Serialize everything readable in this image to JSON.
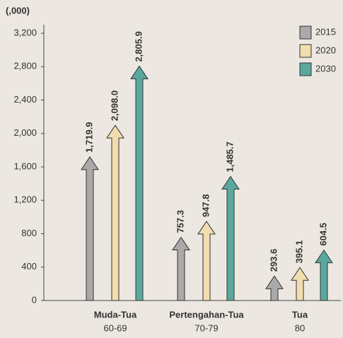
{
  "chart_data": {
    "type": "arrow-bar",
    "ylabel": "(,000)",
    "categories": [
      "Muda-Tua",
      "Pertengahan-Tua",
      "Tua"
    ],
    "category_ranges": [
      "60-69",
      "70-79",
      "80"
    ],
    "series": [
      {
        "name": "2015",
        "color": "#a9a9a9",
        "values": [
          1719.9,
          757.3,
          293.6
        ],
        "value_labels": [
          "1,719.9",
          "757.3",
          "293.6"
        ]
      },
      {
        "name": "2020",
        "color": "#f1ddad",
        "values": [
          2098.0,
          947.8,
          395.1
        ],
        "value_labels": [
          "2,098.0",
          "947.8",
          "395.1"
        ]
      },
      {
        "name": "2030",
        "color": "#5aa89d",
        "values": [
          2805.9,
          1485.7,
          604.5
        ],
        "value_labels": [
          "2,805.9",
          "1,485.7",
          "604.5"
        ]
      }
    ],
    "ylim": [
      0,
      3200
    ],
    "yticks": [
      0,
      400,
      800,
      {
        "value": 1200,
        "label": "1,200"
      },
      {
        "value": 1600,
        "label": "1,600"
      },
      {
        "value": 2000,
        "label": "2,000"
      },
      {
        "value": 2400,
        "label": "2,400"
      },
      {
        "value": 2800,
        "label": "2,800"
      },
      {
        "value": 3200,
        "label": "3,200"
      }
    ],
    "legend": "top-right"
  }
}
